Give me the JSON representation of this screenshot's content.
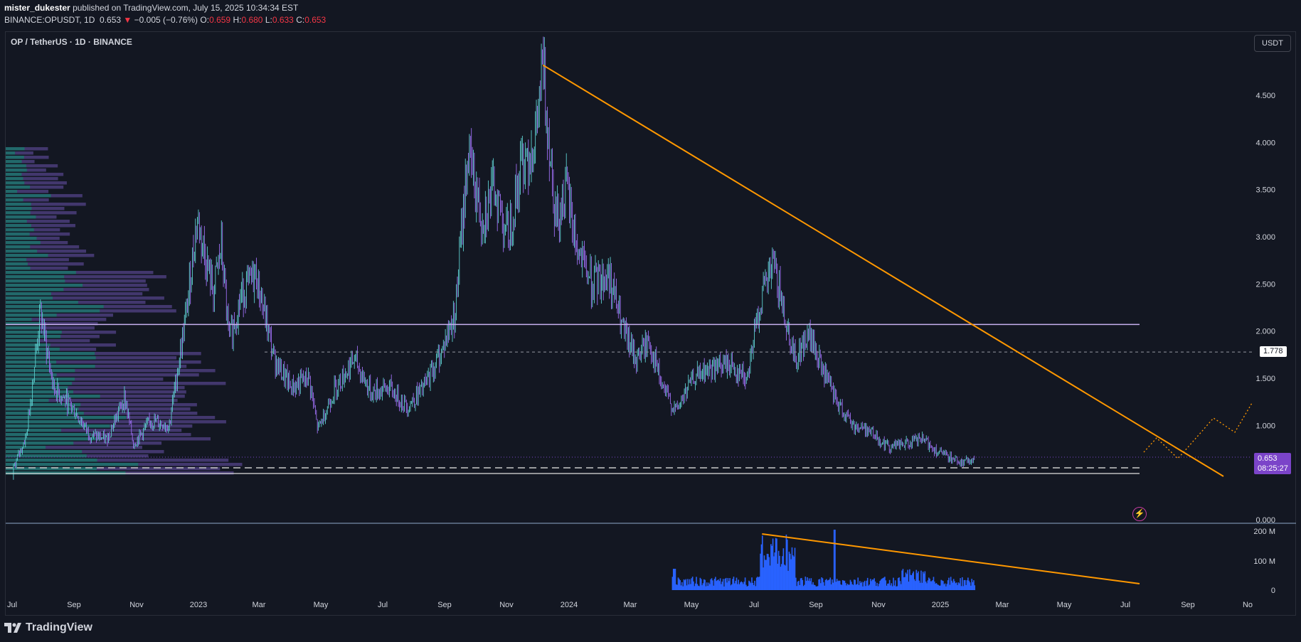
{
  "header": {
    "author": "mister_dukester",
    "published": "published on TradingView.com, July 15, 2025 10:34:34 EST",
    "ticker": "BINANCE:OPUSDT, 1D",
    "last": "0.653",
    "change_arrow": "▼",
    "change": "−0.005 (−0.76%)",
    "open_label": "O:",
    "open": "0.659",
    "high_label": "H:",
    "high": "0.680",
    "low_label": "L:",
    "low": "0.633",
    "close_label": "C:",
    "close": "0.653"
  },
  "chart_title": "OP / TetherUS · 1D · BINANCE",
  "currency_button": "USDT",
  "level_tag": "1.778",
  "price_tag": "0.653",
  "countdown_tag": "08:25:27",
  "footer_brand": "TradingView",
  "colors": {
    "background": "#131722",
    "trendline": "#ff9800",
    "candle_up": "#5ecfd0",
    "candle_down": "#9d6ef2",
    "volume": "#2962ff",
    "support_line": "#c8b0f0",
    "price_tag": "#7b44c9",
    "volume_profile_up": "#1f6f6a",
    "volume_profile_down": "#4b3d7a"
  },
  "chart_data": [
    {
      "type": "line",
      "series": [
        {
          "x": [
            "2022-07-01",
            "2022-07-20",
            "2022-08-05",
            "2022-08-20",
            "2022-09-10",
            "2022-10-01",
            "2022-10-20",
            "2022-11-10",
            "2022-11-20",
            "2022-12-10",
            "2022-12-31",
            "2023-01-20",
            "2023-02-01",
            "2023-02-20",
            "2023-03-01",
            "2023-03-10",
            "2023-03-25",
            "2023-04-10",
            "2023-05-01",
            "2023-05-20",
            "2023-06-10",
            "2023-06-20",
            "2023-07-10",
            "2023-08-01",
            "2023-08-20",
            "2023-09-10",
            "2023-10-01",
            "2023-10-20",
            "2023-11-10",
            "2023-11-25",
            "2023-12-10",
            "2023-12-25",
            "2024-01-10",
            "2024-01-25",
            "2024-02-10",
            "2024-02-25",
            "2024-03-05",
            "2024-03-20",
            "2024-04-01",
            "2024-04-15",
            "2024-05-01",
            "2024-05-20",
            "2024-06-05",
            "2024-06-20",
            "2024-07-05",
            "2024-07-20",
            "2024-08-05",
            "2024-08-25",
            "2024-09-15",
            "2024-10-05",
            "2024-10-25",
            "2024-11-10",
            "2024-11-25",
            "2024-12-05",
            "2024-12-20",
            "2025-01-05",
            "2025-01-20",
            "2025-02-05",
            "2025-02-25",
            "2025-03-15",
            "2025-04-05",
            "2025-04-25",
            "2025-05-15",
            "2025-06-05",
            "2025-06-20",
            "2025-07-01",
            "2025-07-15"
          ],
          "values": [
            0.45,
            0.9,
            2.2,
            1.4,
            1.2,
            0.9,
            0.85,
            1.3,
            0.8,
            1.05,
            1.0,
            2.2,
            3.2,
            2.4,
            2.9,
            1.9,
            2.4,
            2.6,
            1.7,
            1.4,
            1.5,
            0.95,
            1.4,
            1.7,
            1.35,
            1.4,
            1.2,
            1.4,
            1.8,
            2.2,
            3.9,
            3.2,
            3.5,
            3.0,
            3.8,
            4.0,
            4.8,
            3.2,
            3.5,
            2.8,
            2.5,
            2.6,
            2.0,
            1.7,
            1.9,
            1.4,
            1.15,
            1.5,
            1.6,
            1.65,
            1.5,
            2.3,
            2.7,
            2.3,
            1.7,
            1.95,
            1.6,
            1.25,
            1.0,
            0.95,
            0.78,
            0.8,
            0.85,
            0.7,
            0.65,
            0.6,
            0.653
          ]
        }
      ],
      "ylim": [
        0,
        4.8
      ],
      "y_ticks": [
        "4.500",
        "4.000",
        "3.500",
        "3.000",
        "2.500",
        "2.000",
        "1.500",
        "1.000",
        "0.000"
      ],
      "x_ticks": [
        "Jul",
        "Sep",
        "Nov",
        "2023",
        "Mar",
        "May",
        "Jul",
        "Sep",
        "Nov",
        "2024",
        "Mar",
        "May",
        "Jul",
        "Sep",
        "Nov",
        "2025",
        "Mar",
        "May",
        "Jul",
        "Sep",
        "No"
      ],
      "horizontal_lines": [
        2.07,
        1.778,
        0.65,
        0.55
      ],
      "trendlines": [
        {
          "from": [
            "2024-03-05",
            4.82
          ],
          "to": [
            "2025-10-15",
            0.45
          ]
        }
      ]
    },
    {
      "type": "bar",
      "values_scale_max": 200,
      "y_ticks": [
        "200 M",
        "100 M",
        "0"
      ],
      "trendlines": [
        {
          "from": [
            "2024-11-12",
            185
          ],
          "to": [
            "2025-07-12",
            22
          ]
        }
      ]
    }
  ]
}
